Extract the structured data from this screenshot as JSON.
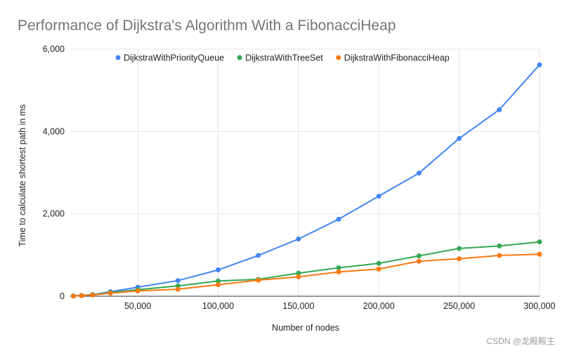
{
  "chart_data": {
    "type": "line",
    "title": "Performance of Dijkstra's Algorithm With a FibonacciHeap",
    "xlabel": "Number of nodes",
    "ylabel": "Time to calculate shortest path in ms",
    "xlim": [
      8000,
      300000
    ],
    "ylim": [
      0,
      6000
    ],
    "x_ticks": [
      {
        "value": 50000,
        "label": "50,000"
      },
      {
        "value": 100000,
        "label": "100,000"
      },
      {
        "value": 150000,
        "label": "150,000"
      },
      {
        "value": 200000,
        "label": "200,000"
      },
      {
        "value": 250000,
        "label": "250,000"
      },
      {
        "value": 300000,
        "label": "300,000"
      }
    ],
    "y_ticks": [
      {
        "value": 0,
        "label": "0"
      },
      {
        "value": 2000,
        "label": "2,000"
      },
      {
        "value": 4000,
        "label": "4,000"
      },
      {
        "value": 6000,
        "label": "6,000"
      }
    ],
    "grid": true,
    "legend_position": "top",
    "x": [
      10000,
      15000,
      22000,
      33000,
      50000,
      75000,
      100000,
      125000,
      150000,
      175000,
      200000,
      225000,
      250000,
      275000,
      300000
    ],
    "series": [
      {
        "name": "DijkstraWithPriorityQueue",
        "color": "#4285f4",
        "values": [
          10,
          20,
          40,
          110,
          220,
          380,
          640,
          990,
          1390,
          1870,
          2430,
          2990,
          3830,
          4530,
          5620
        ]
      },
      {
        "name": "DijkstraWithTreeSet",
        "color": "#34a853",
        "values": [
          5,
          15,
          35,
          90,
          160,
          250,
          370,
          410,
          560,
          690,
          800,
          980,
          1160,
          1220,
          1320
        ]
      },
      {
        "name": "DijkstraWithFibonacciHeap",
        "color": "#fa7a12",
        "values": [
          5,
          15,
          30,
          75,
          130,
          170,
          280,
          390,
          470,
          590,
          660,
          850,
          910,
          990,
          1020
        ]
      }
    ]
  },
  "watermark": "CSDN @龙殿殿主"
}
